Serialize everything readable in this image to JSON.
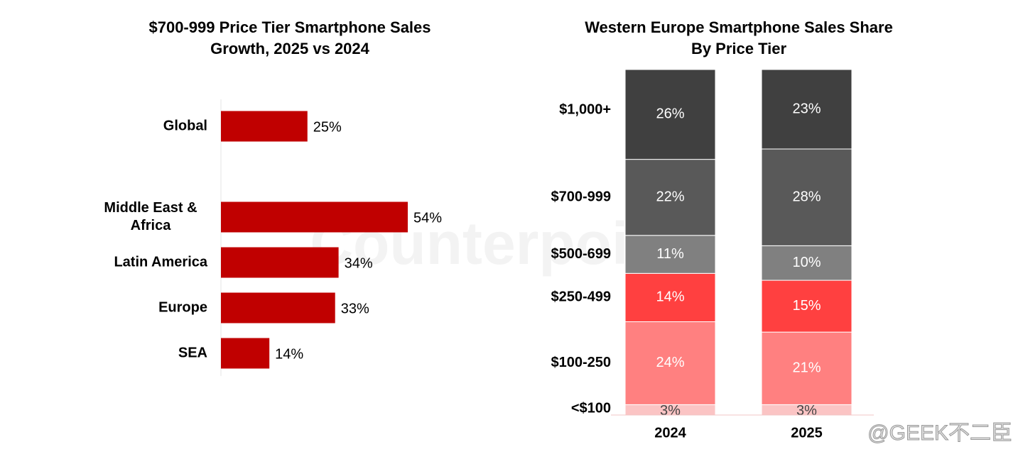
{
  "chart_data": [
    {
      "type": "hbar",
      "title": [
        "$700-999 Price Tier Smartphone Sales",
        "Growth, 2025 vs 2024"
      ],
      "categories": [
        "Global",
        null,
        "Middle East & Africa",
        "Latin America",
        "Europe",
        "SEA"
      ],
      "values": [
        25,
        null,
        54,
        34,
        33,
        14
      ],
      "value_labels": [
        "25%",
        null,
        "54%",
        "34%",
        "33%",
        "14%"
      ],
      "color": "#c00000"
    },
    {
      "type": "stacked-bar",
      "title": [
        "Western Europe Smartphone Sales Share",
        "By Price Tier"
      ],
      "categories": [
        "2024",
        "2025"
      ],
      "series": [
        {
          "name": "<$100",
          "color": "#fbc4c4",
          "values": [
            3,
            3
          ],
          "value_labels": [
            "3%",
            "3%"
          ]
        },
        {
          "name": "$100-250",
          "color": "#ff8080",
          "values": [
            24,
            21
          ],
          "value_labels": [
            "24%",
            "21%"
          ]
        },
        {
          "name": "$250-499",
          "color": "#ff4040",
          "values": [
            14,
            15
          ],
          "value_labels": [
            "14%",
            "15%"
          ]
        },
        {
          "name": "$500-699",
          "color": "#808080",
          "values": [
            11,
            10
          ],
          "value_labels": [
            "11%",
            "10%"
          ]
        },
        {
          "name": "$700-999",
          "color": "#595959",
          "values": [
            22,
            28
          ],
          "value_labels": [
            "22%",
            "28%"
          ]
        },
        {
          "name": "$1,000+",
          "color": "#404040",
          "values": [
            26,
            23
          ],
          "value_labels": [
            "26%",
            "23%"
          ]
        }
      ]
    }
  ],
  "watermark": {
    "text": "@GEEK不二臣",
    "background": "Counterpoint"
  }
}
